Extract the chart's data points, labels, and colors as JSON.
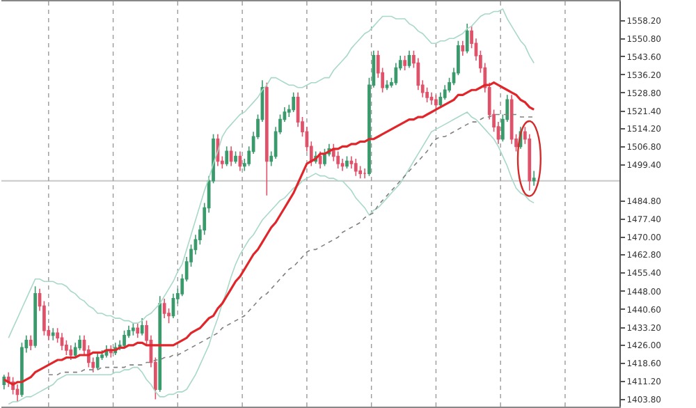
{
  "chart_data": {
    "type": "candlestick",
    "categories": [
      null,
      null,
      null,
      null,
      null,
      null,
      null,
      null,
      null,
      null,
      null,
      null,
      null,
      null,
      null,
      null,
      null,
      null,
      null,
      null,
      null,
      null,
      null,
      null,
      null,
      null,
      null,
      null,
      null,
      null,
      null,
      null,
      null,
      null,
      null,
      null,
      null,
      null,
      null,
      null,
      null,
      null,
      null,
      null,
      null,
      null,
      null,
      null,
      null,
      null,
      null,
      null,
      null,
      null,
      null,
      null,
      null,
      null,
      null,
      null,
      null,
      null,
      null,
      null,
      null,
      null,
      null,
      null,
      null,
      null,
      null,
      null,
      null,
      null,
      null,
      null,
      null,
      null,
      null,
      null,
      null,
      null,
      null,
      null,
      null,
      null,
      null,
      null,
      null,
      null,
      null,
      null,
      null,
      null,
      null,
      null,
      null,
      null,
      null,
      null,
      null,
      null,
      null,
      null,
      null,
      null,
      null,
      null,
      null,
      null,
      null,
      null,
      null,
      null,
      null,
      null,
      null,
      null,
      null,
      null
    ],
    "ohlc": [
      [
        1410,
        1414,
        1408,
        1413
      ],
      [
        1413,
        1415,
        1409,
        1411
      ],
      [
        1411,
        1413,
        1406,
        1408
      ],
      [
        1408,
        1410,
        1403,
        1406
      ],
      [
        1406,
        1427,
        1405,
        1425
      ],
      [
        1425,
        1430,
        1423,
        1428
      ],
      [
        1428,
        1430,
        1424,
        1426
      ],
      [
        1426,
        1450,
        1425,
        1447
      ],
      [
        1447,
        1449,
        1440,
        1442
      ],
      [
        1442,
        1444,
        1430,
        1432
      ],
      [
        1432,
        1434,
        1428,
        1430
      ],
      [
        1430,
        1433,
        1428,
        1431
      ],
      [
        1431,
        1433,
        1427,
        1429
      ],
      [
        1429,
        1431,
        1424,
        1426
      ],
      [
        1426,
        1428,
        1422,
        1424
      ],
      [
        1424,
        1426,
        1420,
        1422
      ],
      [
        1422,
        1427,
        1421,
        1425
      ],
      [
        1425,
        1430,
        1424,
        1428
      ],
      [
        1428,
        1430,
        1422,
        1424
      ],
      [
        1424,
        1426,
        1417,
        1419
      ],
      [
        1419,
        1421,
        1415,
        1417
      ],
      [
        1417,
        1423,
        1416,
        1421
      ],
      [
        1421,
        1424,
        1420,
        1422
      ],
      [
        1422,
        1426,
        1421,
        1424
      ],
      [
        1424,
        1426,
        1421,
        1423
      ],
      [
        1423,
        1427,
        1422,
        1425
      ],
      [
        1425,
        1428,
        1424,
        1426
      ],
      [
        1426,
        1432,
        1425,
        1430
      ],
      [
        1430,
        1434,
        1429,
        1432
      ],
      [
        1432,
        1435,
        1430,
        1433
      ],
      [
        1433,
        1435,
        1429,
        1431
      ],
      [
        1431,
        1437,
        1430,
        1434
      ],
      [
        1434,
        1436,
        1426,
        1428
      ],
      [
        1428,
        1430,
        1417,
        1419
      ],
      [
        1419,
        1421,
        1404,
        1408
      ],
      [
        1408,
        1446,
        1407,
        1443
      ],
      [
        1443,
        1445,
        1437,
        1439
      ],
      [
        1439,
        1441,
        1435,
        1438
      ],
      [
        1438,
        1447,
        1437,
        1445
      ],
      [
        1445,
        1449,
        1443,
        1447
      ],
      [
        1447,
        1455,
        1446,
        1453
      ],
      [
        1453,
        1462,
        1452,
        1460
      ],
      [
        1460,
        1467,
        1458,
        1465
      ],
      [
        1465,
        1471,
        1463,
        1469
      ],
      [
        1469,
        1475,
        1467,
        1473
      ],
      [
        1473,
        1484,
        1471,
        1482
      ],
      [
        1482,
        1495,
        1480,
        1493
      ],
      [
        1493,
        1512,
        1492,
        1510
      ],
      [
        1510,
        1512,
        1499,
        1501
      ],
      [
        1501,
        1503,
        1498,
        1500
      ],
      [
        1500,
        1507,
        1499,
        1505
      ],
      [
        1505,
        1507,
        1499,
        1501
      ],
      [
        1501,
        1505,
        1500,
        1503
      ],
      [
        1503,
        1505,
        1497,
        1499
      ],
      [
        1499,
        1502,
        1497,
        1500
      ],
      [
        1500,
        1507,
        1499,
        1505
      ],
      [
        1505,
        1513,
        1504,
        1511
      ],
      [
        1511,
        1520,
        1510,
        1518
      ],
      [
        1518,
        1534,
        1517,
        1531
      ],
      [
        1531,
        1533,
        1487,
        1501
      ],
      [
        1501,
        1505,
        1499,
        1503
      ],
      [
        1503,
        1515,
        1502,
        1513
      ],
      [
        1513,
        1520,
        1512,
        1518
      ],
      [
        1518,
        1523,
        1517,
        1521
      ],
      [
        1521,
        1524,
        1519,
        1522
      ],
      [
        1522,
        1529,
        1521,
        1527
      ],
      [
        1527,
        1529,
        1515,
        1517
      ],
      [
        1517,
        1519,
        1511,
        1513
      ],
      [
        1513,
        1515,
        1505,
        1507
      ],
      [
        1507,
        1509,
        1499,
        1501
      ],
      [
        1501,
        1505,
        1500,
        1503
      ],
      [
        1503,
        1505,
        1498,
        1500
      ],
      [
        1500,
        1506,
        1499,
        1504
      ],
      [
        1504,
        1508,
        1503,
        1506
      ],
      [
        1506,
        1508,
        1501,
        1503
      ],
      [
        1503,
        1505,
        1498,
        1500
      ],
      [
        1500,
        1502,
        1497,
        1499
      ],
      [
        1499,
        1503,
        1498,
        1501
      ],
      [
        1501,
        1503,
        1498,
        1500
      ],
      [
        1500,
        1502,
        1495,
        1497
      ],
      [
        1497,
        1499,
        1494,
        1496
      ],
      [
        1496,
        1498,
        1494,
        1496
      ],
      [
        1496,
        1535,
        1495,
        1532
      ],
      [
        1532,
        1546,
        1531,
        1544
      ],
      [
        1544,
        1546,
        1535,
        1537
      ],
      [
        1537,
        1539,
        1529,
        1531
      ],
      [
        1531,
        1534,
        1530,
        1532
      ],
      [
        1532,
        1535,
        1531,
        1533
      ],
      [
        1533,
        1541,
        1532,
        1539
      ],
      [
        1539,
        1544,
        1538,
        1542
      ],
      [
        1542,
        1544,
        1538,
        1540
      ],
      [
        1540,
        1546,
        1539,
        1544
      ],
      [
        1544,
        1546,
        1539,
        1541
      ],
      [
        1541,
        1543,
        1530,
        1532
      ],
      [
        1532,
        1534,
        1527,
        1529
      ],
      [
        1529,
        1531,
        1525,
        1527
      ],
      [
        1527,
        1529,
        1524,
        1526
      ],
      [
        1526,
        1528,
        1522,
        1524
      ],
      [
        1524,
        1529,
        1523,
        1527
      ],
      [
        1527,
        1532,
        1526,
        1530
      ],
      [
        1530,
        1535,
        1529,
        1533
      ],
      [
        1533,
        1539,
        1532,
        1537
      ],
      [
        1537,
        1550,
        1536,
        1548
      ],
      [
        1548,
        1550,
        1544,
        1546
      ],
      [
        1546,
        1557,
        1545,
        1554
      ],
      [
        1554,
        1556,
        1547,
        1549
      ],
      [
        1549,
        1551,
        1542,
        1544
      ],
      [
        1544,
        1546,
        1537,
        1539
      ],
      [
        1539,
        1541,
        1529,
        1531
      ],
      [
        1531,
        1533,
        1518,
        1520
      ],
      [
        1520,
        1522,
        1513,
        1515
      ],
      [
        1515,
        1517,
        1508,
        1510
      ],
      [
        1510,
        1520,
        1509,
        1518
      ],
      [
        1518,
        1528,
        1517,
        1526
      ],
      [
        1526,
        1528,
        1508,
        1510
      ],
      [
        1510,
        1512,
        1505,
        1507
      ],
      [
        1507,
        1515,
        1506,
        1513
      ],
      [
        1513,
        1515,
        1508,
        1510
      ],
      [
        1510,
        1512,
        1489,
        1493
      ],
      [
        1493,
        1497,
        1491,
        1494
      ]
    ],
    "series": [
      {
        "type": "line",
        "color": "#a8d8c8",
        "values": [
          null,
          1429,
          1433,
          1437,
          1441,
          1445,
          1449,
          1453,
          1453,
          1452,
          1452,
          1452,
          1451,
          1451,
          1450,
          1448,
          1447,
          1445,
          1444,
          1442,
          1441,
          1439,
          1439,
          1438,
          1438,
          1437,
          1437,
          1436,
          1436,
          1435,
          1435,
          1436,
          1438,
          1439,
          1441,
          1443,
          1446,
          1449,
          1452,
          1456,
          1459,
          1465,
          1471,
          1477,
          1483,
          1489,
          1494,
          1500,
          1505,
          1511,
          1514,
          1516,
          1518,
          1520,
          1521,
          1523,
          1525,
          1527,
          1530,
          1532,
          1535,
          1535,
          1534,
          1533,
          1532,
          1532,
          1531,
          1531,
          1532,
          1533,
          1533,
          1534,
          1535,
          1535,
          1538,
          1540,
          1542,
          1544,
          1547,
          1549,
          1551,
          1553,
          1554,
          1556,
          1558,
          1560,
          1560,
          1560,
          1559,
          1559,
          1559,
          1557,
          1556,
          1554,
          1553,
          1551,
          1549,
          1549,
          1550,
          1550,
          1551,
          1551,
          1552,
          1553,
          1555,
          1556,
          1558,
          1560,
          1561,
          1561,
          1562,
          1562,
          1563,
          1559,
          1556,
          1553,
          1550,
          1548,
          1544,
          1541
        ]
      },
      {
        "type": "line",
        "color": "#a8d8c8",
        "values": [
          null,
          1402,
          1403,
          1403,
          1404,
          1405,
          1405,
          1406,
          1407,
          1408,
          1409,
          1410,
          1412,
          1413,
          1414,
          1414,
          1414,
          1414,
          1414,
          1414,
          1414,
          1414,
          1414,
          1414,
          1414,
          1415,
          1415,
          1416,
          1416,
          1417,
          1417,
          1415,
          1412,
          1410,
          1407,
          1405,
          1405,
          1406,
          1406,
          1407,
          1407,
          1408,
          1411,
          1414,
          1418,
          1422,
          1426,
          1432,
          1437,
          1443,
          1448,
          1454,
          1459,
          1463,
          1466,
          1469,
          1471,
          1474,
          1477,
          1479,
          1481,
          1483,
          1485,
          1486,
          1488,
          1490,
          1491,
          1493,
          1494,
          1495,
          1496,
          1495,
          1495,
          1494,
          1494,
          1493,
          1493,
          1491,
          1489,
          1486,
          1484,
          1482,
          1479,
          1481,
          1482,
          1484,
          1486,
          1488,
          1490,
          1492,
          1495,
          1498,
          1501,
          1504,
          1507,
          1510,
          1513,
          1514,
          1515,
          1516,
          1517,
          1518,
          1519,
          1520,
          1521,
          1519,
          1518,
          1516,
          1514,
          1512,
          1510,
          1507,
          1503,
          1499,
          1494,
          1490,
          1488,
          1487,
          1485,
          1484
        ]
      },
      {
        "type": "line",
        "color": "#808080",
        "line_style": "dotted",
        "values": [
          null,
          null,
          null,
          null,
          null,
          null,
          null,
          null,
          null,
          null,
          1414,
          1414,
          1414,
          1415,
          1415,
          1415,
          1415,
          1415,
          1416,
          1416,
          1416,
          1416,
          1417,
          1417,
          1417,
          1417,
          1417,
          1417,
          1418,
          1418,
          1418,
          1418,
          1419,
          1419,
          1420,
          1420,
          1421,
          1421,
          1422,
          1422,
          1423,
          1424,
          1425,
          1426,
          1427,
          1428,
          1429,
          1430,
          1431,
          1433,
          1434,
          1435,
          1436,
          1437,
          1438,
          1440,
          1442,
          1444,
          1446,
          1447,
          1449,
          1451,
          1453,
          1455,
          1457,
          1458,
          1460,
          1462,
          1464,
          1465,
          1465,
          1466,
          1467,
          1468,
          1469,
          1470,
          1472,
          1473,
          1474,
          1475,
          1476,
          1478,
          1479,
          1480,
          1483,
          1485,
          1487,
          1489,
          1491,
          1493,
          1495,
          1497,
          1499,
          1501,
          1503,
          1505,
          1508,
          1510,
          1511,
          1511,
          1512,
          1513,
          1514,
          1515,
          1516,
          1517,
          1517,
          1518,
          1519,
          1519,
          1520,
          1520,
          1520,
          1520,
          1520,
          1520,
          1519,
          1519,
          1519,
          1519
        ]
      },
      {
        "type": "line",
        "color": "#e0262a",
        "values": [
          1412,
          1411,
          1410,
          1411,
          1411,
          1412,
          1413,
          1415,
          1416,
          1417,
          1418,
          1419,
          1420,
          1420,
          1421,
          1421,
          1421,
          1422,
          1422,
          1422,
          1423,
          1423,
          1423,
          1424,
          1424,
          1424,
          1425,
          1425,
          1426,
          1426,
          1427,
          1427,
          1426,
          1426,
          1426,
          1426,
          1426,
          1426,
          1426,
          1427,
          1428,
          1429,
          1431,
          1432,
          1433,
          1435,
          1437,
          1438,
          1441,
          1443,
          1446,
          1449,
          1452,
          1454,
          1457,
          1460,
          1463,
          1465,
          1468,
          1471,
          1474,
          1476,
          1479,
          1482,
          1485,
          1488,
          1492,
          1496,
          1500,
          1501,
          1502,
          1504,
          1504,
          1505,
          1506,
          1506,
          1507,
          1507,
          1508,
          1508,
          1509,
          1509,
          1510,
          1510,
          1511,
          1512,
          1513,
          1514,
          1515,
          1516,
          1517,
          1518,
          1518,
          1519,
          1519,
          1520,
          1521,
          1522,
          1523,
          1524,
          1525,
          1526,
          1528,
          1528,
          1529,
          1530,
          1530,
          1531,
          1532,
          1532,
          1533,
          1532,
          1531,
          1530,
          1529,
          1528,
          1526,
          1525,
          1523,
          1522
        ]
      }
    ],
    "ylim": [
      1401,
      1566.1
    ],
    "yticks": [
      {
        "value": 1403.8,
        "label": "1403.80"
      },
      {
        "value": 1411.2,
        "label": "1411.20"
      },
      {
        "value": 1418.6,
        "label": "1418.60"
      },
      {
        "value": 1426,
        "label": "1426.00"
      },
      {
        "value": 1433.2,
        "label": "1433.20"
      },
      {
        "value": 1440.6,
        "label": "1440.60"
      },
      {
        "value": 1448,
        "label": "1448.00"
      },
      {
        "value": 1455.4,
        "label": "1455.40"
      },
      {
        "value": 1462.8,
        "label": "1462.80"
      },
      {
        "value": 1470,
        "label": "1470.00"
      },
      {
        "value": 1477.4,
        "label": "1477.40"
      },
      {
        "value": 1484.8,
        "label": "1484.80"
      },
      {
        "value": 1499.4,
        "label": "1499.40"
      },
      {
        "value": 1506.8,
        "label": "1506.80"
      },
      {
        "value": 1514.2,
        "label": "1514.20"
      },
      {
        "value": 1521.4,
        "label": "1521.40"
      },
      {
        "value": 1528.8,
        "label": "1528.80"
      },
      {
        "value": 1536.2,
        "label": "1536.20"
      },
      {
        "value": 1543.6,
        "label": "1543.60"
      },
      {
        "value": 1550.8,
        "label": "1550.80"
      },
      {
        "value": 1558.2,
        "label": "1558.20"
      }
    ],
    "ref_lines": [
      {
        "axis": "y",
        "value": 1493,
        "color": "#c8c8c8"
      }
    ],
    "grid": "x",
    "tick_labels": "y"
  }
}
